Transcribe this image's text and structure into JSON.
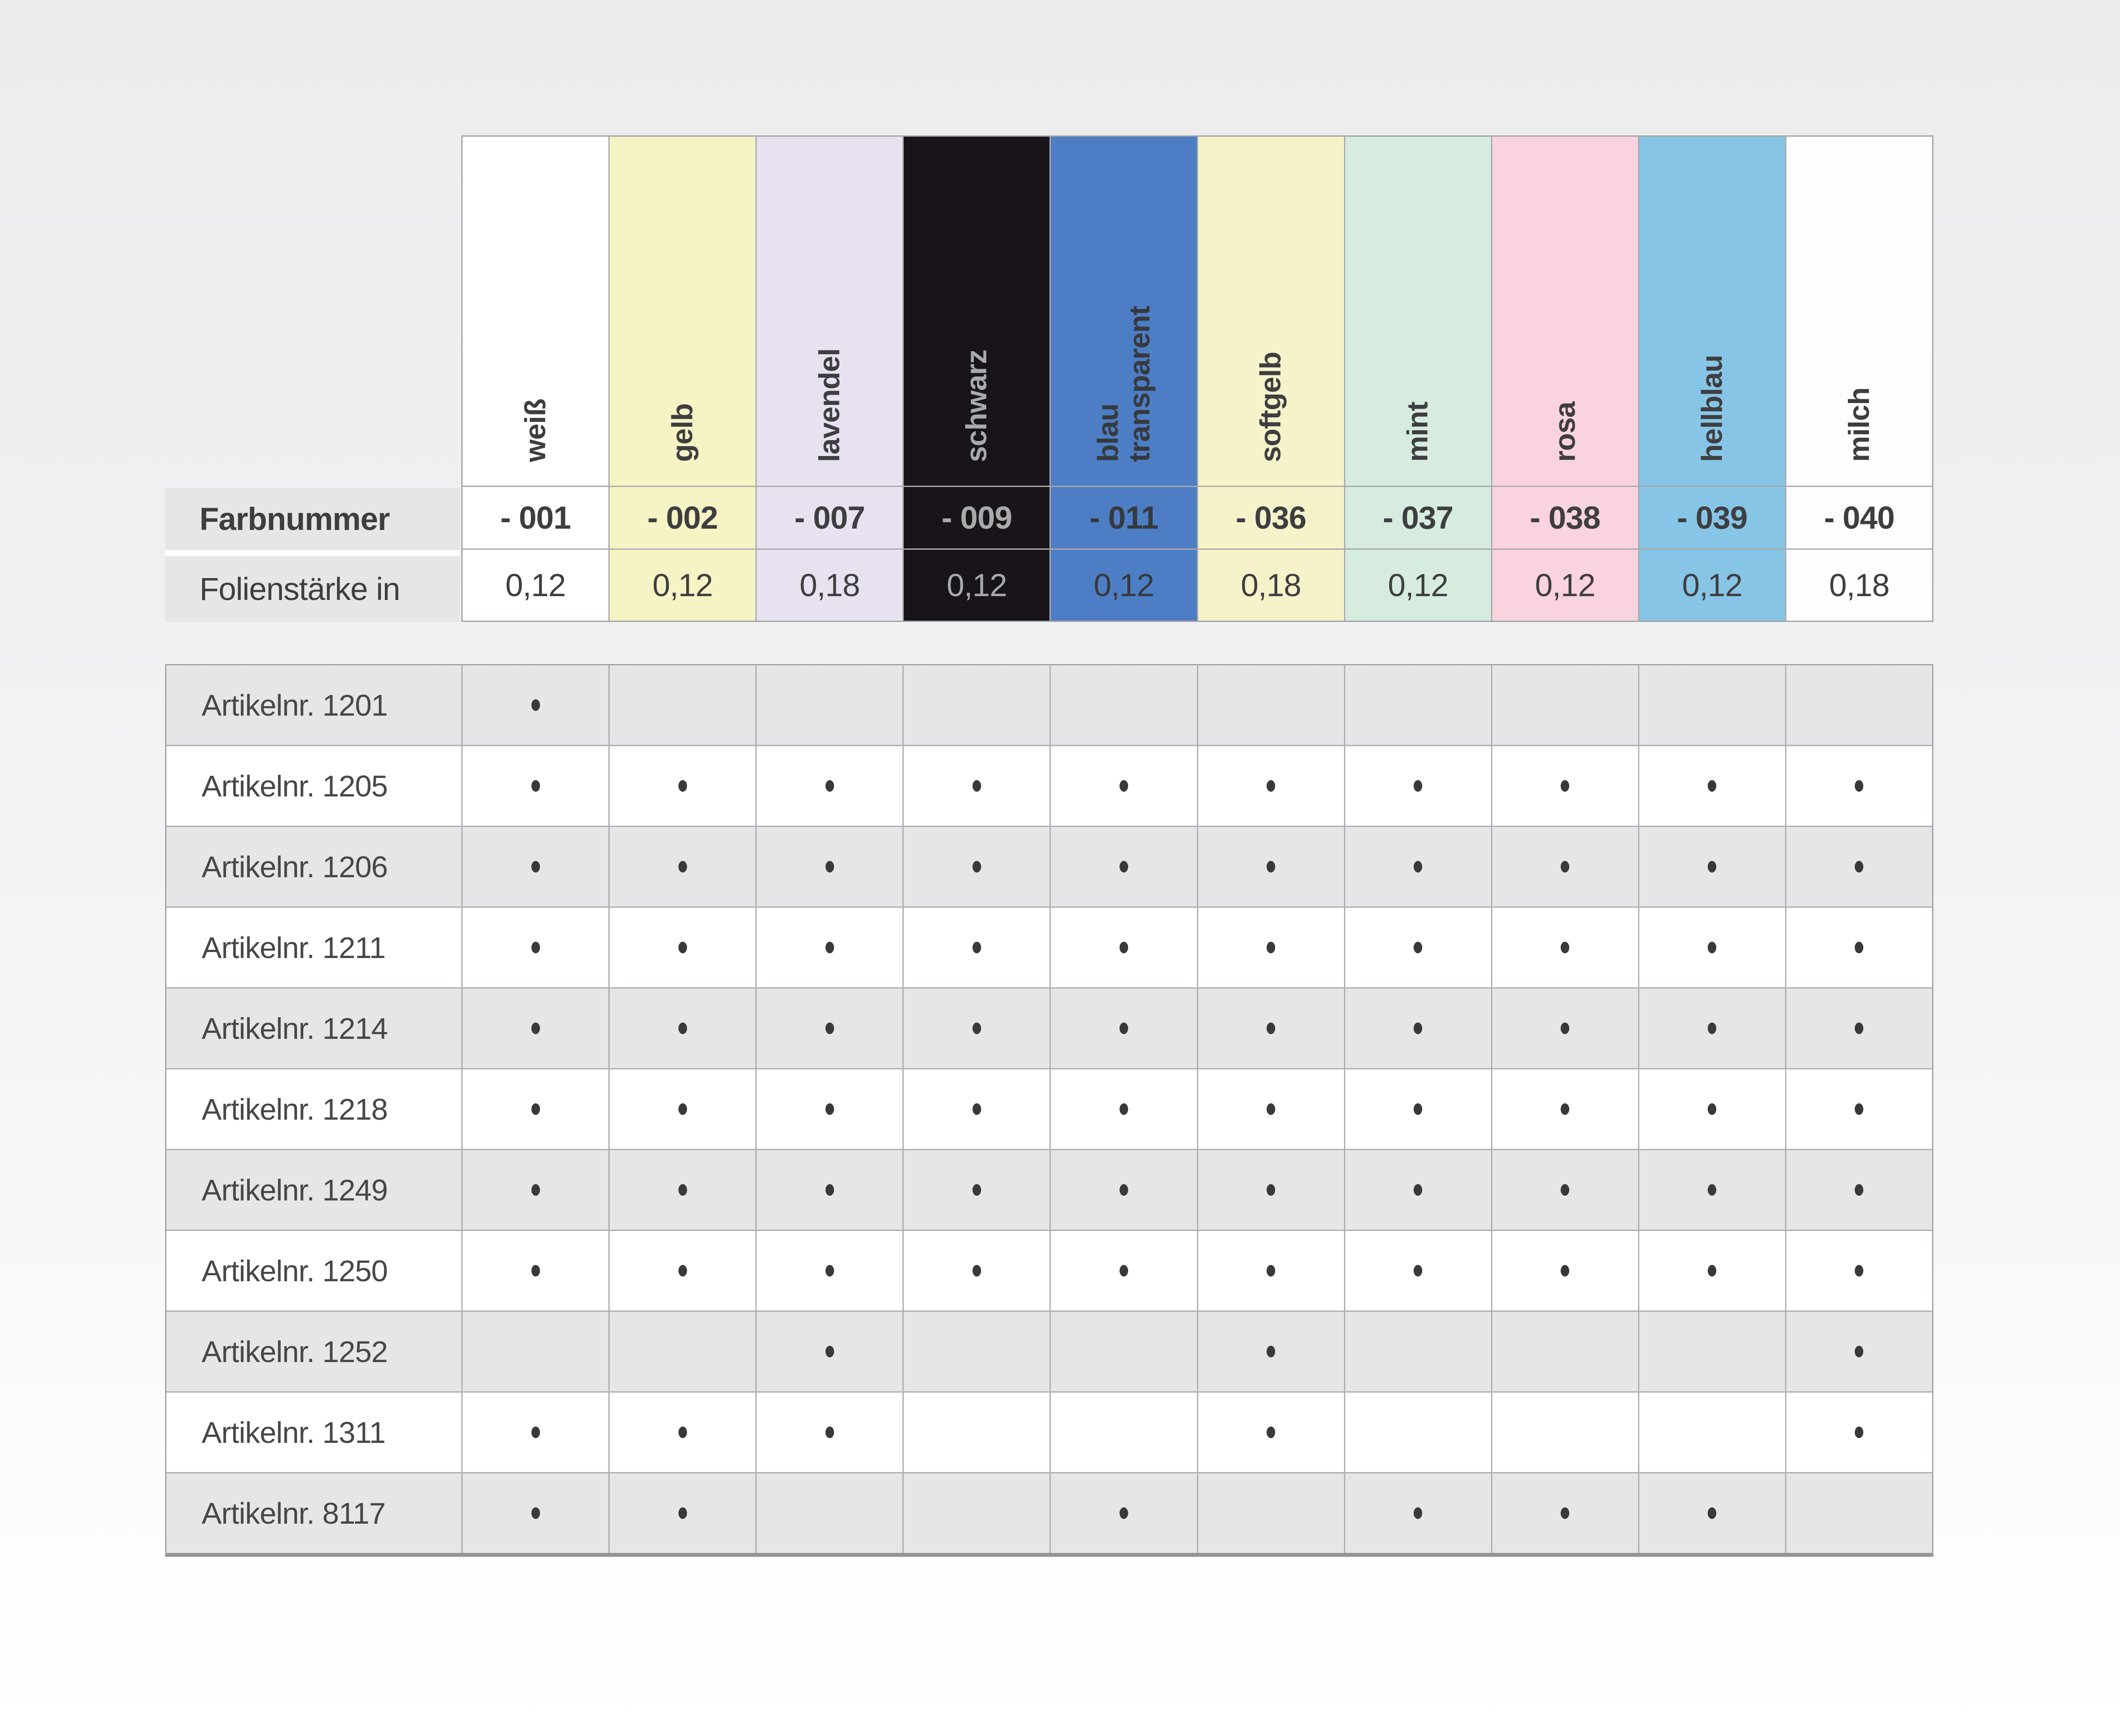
{
  "header": {
    "farbnummer_label": "Farbnummer",
    "folienstaerke_label": "Folienstärke in"
  },
  "columns": [
    {
      "name": "weiß",
      "code": "- 001",
      "thickness": "0,12",
      "swatch": "#ffffff",
      "text": "#3e3e40"
    },
    {
      "name": "gelb",
      "code": "- 002",
      "thickness": "0,12",
      "swatch": "#f6f3c4",
      "text": "#3e3e40"
    },
    {
      "name": "lavendel",
      "code": "- 007",
      "thickness": "0,18",
      "swatch": "#e8e1f0",
      "text": "#3e3e40"
    },
    {
      "name": "schwarz",
      "code": "- 009",
      "thickness": "0,12",
      "swatch": "#19141a",
      "text": "#a8a9ab"
    },
    {
      "name": "blau\ntransparent",
      "code": "- 011",
      "thickness": "0,12",
      "swatch": "#4d7ec5",
      "text": "#36393d"
    },
    {
      "name": "softgelb",
      "code": "- 036",
      "thickness": "0,18",
      "swatch": "#f6f3cb",
      "text": "#3e3e40"
    },
    {
      "name": "mint",
      "code": "- 037",
      "thickness": "0,12",
      "swatch": "#d5ecdf",
      "text": "#3e3e40"
    },
    {
      "name": "rosa",
      "code": "- 038",
      "thickness": "0,12",
      "swatch": "#f9d3dd",
      "text": "#3e3e40"
    },
    {
      "name": "hellblau",
      "code": "- 039",
      "thickness": "0,12",
      "swatch": "#87c5e6",
      "text": "#3e3e40"
    },
    {
      "name": "milch",
      "code": "- 040",
      "thickness": "0,18",
      "swatch": "#fdfdfe",
      "text": "#3e3e40"
    }
  ],
  "articles": [
    {
      "label": "Artikelnr. 1201",
      "dots": [
        1,
        0,
        0,
        0,
        0,
        0,
        0,
        0,
        0,
        0
      ]
    },
    {
      "label": "Artikelnr. 1205",
      "dots": [
        1,
        1,
        1,
        1,
        1,
        1,
        1,
        1,
        1,
        1
      ]
    },
    {
      "label": "Artikelnr. 1206",
      "dots": [
        1,
        1,
        1,
        1,
        1,
        1,
        1,
        1,
        1,
        1
      ]
    },
    {
      "label": "Artikelnr. 1211",
      "dots": [
        1,
        1,
        1,
        1,
        1,
        1,
        1,
        1,
        1,
        1
      ]
    },
    {
      "label": "Artikelnr. 1214",
      "dots": [
        1,
        1,
        1,
        1,
        1,
        1,
        1,
        1,
        1,
        1
      ]
    },
    {
      "label": "Artikelnr. 1218",
      "dots": [
        1,
        1,
        1,
        1,
        1,
        1,
        1,
        1,
        1,
        1
      ]
    },
    {
      "label": "Artikelnr. 1249",
      "dots": [
        1,
        1,
        1,
        1,
        1,
        1,
        1,
        1,
        1,
        1
      ]
    },
    {
      "label": "Artikelnr. 1250",
      "dots": [
        1,
        1,
        1,
        1,
        1,
        1,
        1,
        1,
        1,
        1
      ]
    },
    {
      "label": "Artikelnr. 1252",
      "dots": [
        0,
        0,
        1,
        0,
        0,
        1,
        0,
        0,
        0,
        1
      ]
    },
    {
      "label": "Artikelnr. 1311",
      "dots": [
        1,
        1,
        1,
        0,
        0,
        1,
        0,
        0,
        0,
        1
      ]
    },
    {
      "label": "Artikelnr. 8117",
      "dots": [
        1,
        1,
        0,
        0,
        1,
        0,
        1,
        1,
        1,
        0
      ]
    }
  ],
  "colors": {
    "row_alt": "#e5e6e7",
    "row_base": "#ffffff",
    "grid_line": "#aeafb1",
    "outer_border": "#a2a3a5",
    "bottom_border": "#939496",
    "dot": "#39393b"
  }
}
